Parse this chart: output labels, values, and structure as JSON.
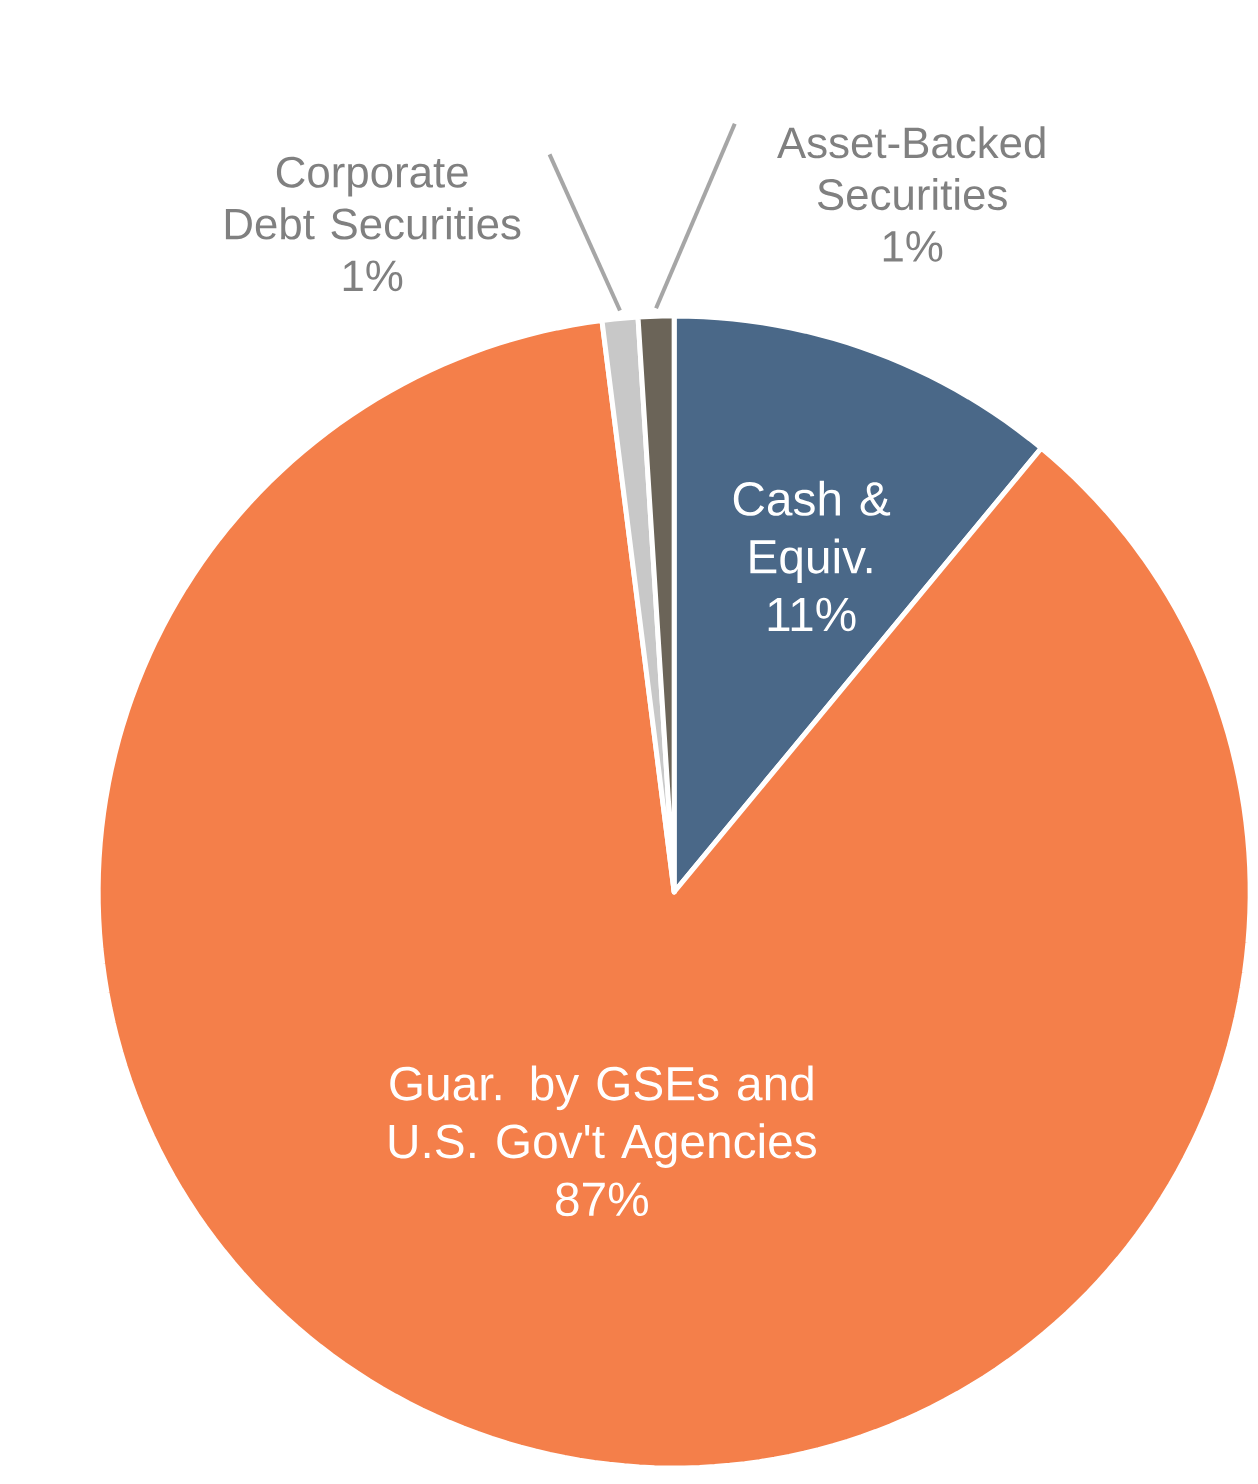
{
  "chart_data": {
    "type": "pie",
    "categories": [
      "Cash & Equiv.",
      "Guar. by GSEs and U.S. Gov't Agencies",
      "Corporate Debt Securities",
      "Asset-Backed Securities"
    ],
    "values": [
      11,
      87,
      1,
      1
    ],
    "value_labels": [
      "11%",
      "87%",
      "1%",
      "1%"
    ],
    "colors": [
      "#4a6888",
      "#f47f4a",
      "#c8c8c8",
      "#6b6458"
    ]
  }
}
